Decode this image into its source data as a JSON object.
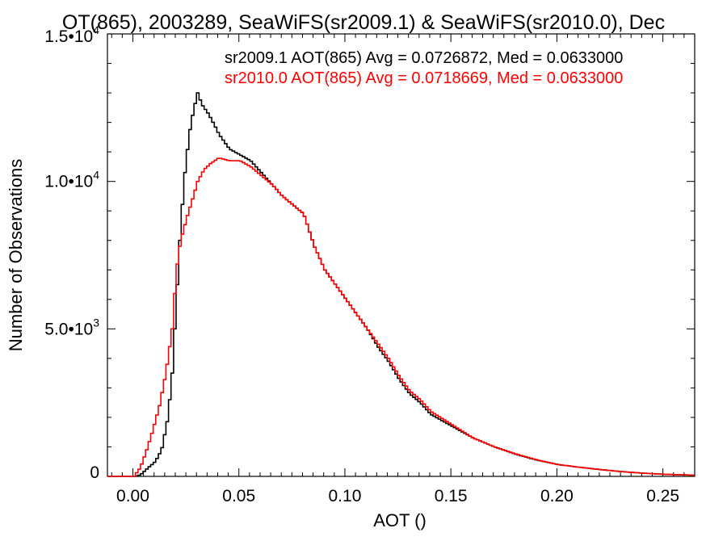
{
  "chart_data": {
    "type": "line",
    "title": "OT(865), 2003289, SeaWiFS(sr2009.1) & SeaWiFS(sr2010.0), Dec",
    "xlabel": "AOT ()",
    "ylabel": "Number of Observations",
    "xlim": [
      -0.012,
      0.265
    ],
    "ylim": [
      0,
      15000
    ],
    "x_ticks": [
      {
        "value": 0.0,
        "label": "0.00"
      },
      {
        "value": 0.05,
        "label": "0.05"
      },
      {
        "value": 0.1,
        "label": "0.10"
      },
      {
        "value": 0.15,
        "label": "0.15"
      },
      {
        "value": 0.2,
        "label": "0.20"
      },
      {
        "value": 0.25,
        "label": "0.25"
      }
    ],
    "y_ticks": [
      {
        "value": 0,
        "mantissa": "0",
        "exponent": ""
      },
      {
        "value": 5000,
        "mantissa": "5.0•10",
        "exponent": "3"
      },
      {
        "value": 10000,
        "mantissa": "1.0•10",
        "exponent": "4"
      },
      {
        "value": 15000,
        "mantissa": "1.5•10",
        "exponent": "4"
      }
    ],
    "legend_position": "top-right",
    "series": [
      {
        "name": "sr2009.1",
        "legend": "sr2009.1 AOT(865) Avg = 0.0726872, Med = 0.0633000",
        "color": "#000000",
        "points": [
          [
            -0.012,
            0
          ],
          [
            0.0,
            0
          ],
          [
            0.003,
            50
          ],
          [
            0.006,
            250
          ],
          [
            0.01,
            500
          ],
          [
            0.013,
            900
          ],
          [
            0.016,
            2000
          ],
          [
            0.018,
            3500
          ],
          [
            0.02,
            6000
          ],
          [
            0.022,
            8500
          ],
          [
            0.024,
            10300
          ],
          [
            0.026,
            11600
          ],
          [
            0.028,
            12400
          ],
          [
            0.03,
            13000
          ],
          [
            0.032,
            12600
          ],
          [
            0.035,
            12300
          ],
          [
            0.038,
            11900
          ],
          [
            0.04,
            11600
          ],
          [
            0.045,
            11100
          ],
          [
            0.05,
            10900
          ],
          [
            0.055,
            10700
          ],
          [
            0.06,
            10300
          ],
          [
            0.065,
            9900
          ],
          [
            0.07,
            9500
          ],
          [
            0.075,
            9200
          ],
          [
            0.08,
            8900
          ],
          [
            0.085,
            7800
          ],
          [
            0.09,
            7000
          ],
          [
            0.095,
            6500
          ],
          [
            0.1,
            6000
          ],
          [
            0.105,
            5500
          ],
          [
            0.11,
            5000
          ],
          [
            0.115,
            4400
          ],
          [
            0.12,
            3900
          ],
          [
            0.125,
            3300
          ],
          [
            0.13,
            2800
          ],
          [
            0.135,
            2500
          ],
          [
            0.14,
            2100
          ],
          [
            0.15,
            1700
          ],
          [
            0.16,
            1300
          ],
          [
            0.17,
            1000
          ],
          [
            0.18,
            750
          ],
          [
            0.19,
            550
          ],
          [
            0.2,
            400
          ],
          [
            0.21,
            310
          ],
          [
            0.22,
            230
          ],
          [
            0.23,
            160
          ],
          [
            0.24,
            110
          ],
          [
            0.25,
            70
          ],
          [
            0.265,
            40
          ]
        ]
      },
      {
        "name": "sr2010.0",
        "legend": "sr2010.0 AOT(865) Avg = 0.0718669, Med = 0.0633000",
        "color": "#ff0000",
        "points": [
          [
            -0.012,
            0
          ],
          [
            0.0,
            0
          ],
          [
            0.003,
            300
          ],
          [
            0.006,
            900
          ],
          [
            0.009,
            1600
          ],
          [
            0.012,
            2400
          ],
          [
            0.015,
            3500
          ],
          [
            0.018,
            5000
          ],
          [
            0.02,
            7000
          ],
          [
            0.022,
            8000
          ],
          [
            0.025,
            8800
          ],
          [
            0.028,
            9500
          ],
          [
            0.03,
            10000
          ],
          [
            0.033,
            10400
          ],
          [
            0.036,
            10600
          ],
          [
            0.04,
            10800
          ],
          [
            0.045,
            10700
          ],
          [
            0.05,
            10700
          ],
          [
            0.055,
            10500
          ],
          [
            0.06,
            10200
          ],
          [
            0.065,
            9900
          ],
          [
            0.07,
            9500
          ],
          [
            0.075,
            9200
          ],
          [
            0.08,
            8900
          ],
          [
            0.085,
            7800
          ],
          [
            0.09,
            7000
          ],
          [
            0.095,
            6500
          ],
          [
            0.1,
            6000
          ],
          [
            0.105,
            5500
          ],
          [
            0.11,
            5000
          ],
          [
            0.115,
            4500
          ],
          [
            0.12,
            4000
          ],
          [
            0.125,
            3400
          ],
          [
            0.13,
            2900
          ],
          [
            0.135,
            2600
          ],
          [
            0.14,
            2200
          ],
          [
            0.15,
            1750
          ],
          [
            0.16,
            1300
          ],
          [
            0.17,
            1000
          ],
          [
            0.18,
            760
          ],
          [
            0.19,
            560
          ],
          [
            0.2,
            400
          ],
          [
            0.21,
            310
          ],
          [
            0.22,
            230
          ],
          [
            0.23,
            160
          ],
          [
            0.24,
            110
          ],
          [
            0.25,
            70
          ],
          [
            0.265,
            40
          ]
        ]
      }
    ]
  }
}
